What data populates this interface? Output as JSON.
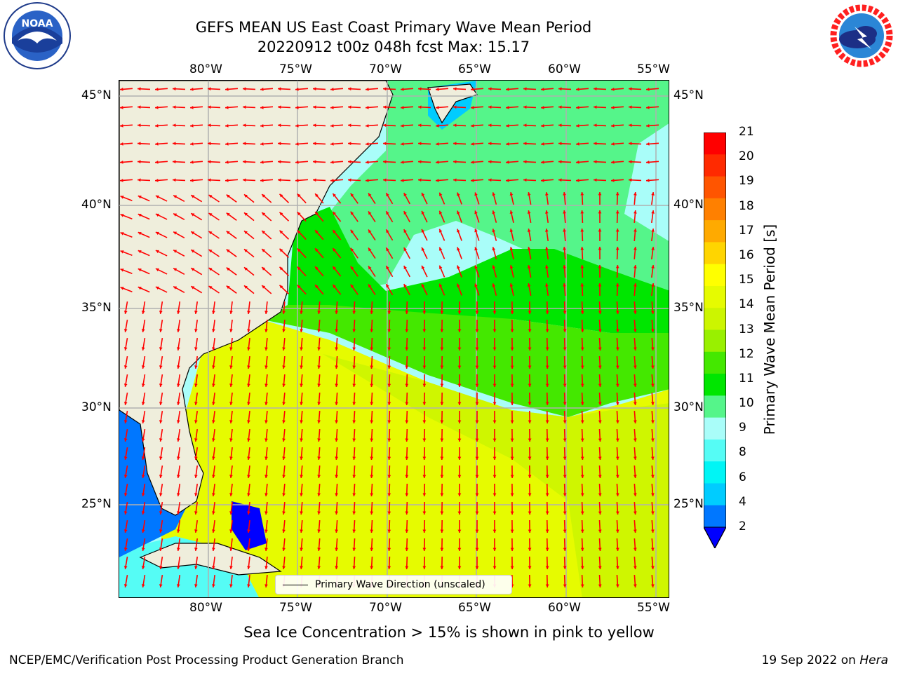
{
  "title_line1": "GEFS MEAN US East Coast Primary Wave Mean Period",
  "title_line2": "20220912 t00z 048h fcst   Max: 15.17",
  "lon_ticks": [
    "80°W",
    "75°W",
    "70°W",
    "65°W",
    "60°W",
    "55°W"
  ],
  "lat_ticks": [
    "45°N",
    "40°N",
    "35°N",
    "30°N",
    "25°N"
  ],
  "colorbar": {
    "label": "Primary Wave Mean Period [s]",
    "ticks": [
      "21",
      "20",
      "19",
      "18",
      "17",
      "16",
      "15",
      "14",
      "13",
      "12",
      "11",
      "10",
      "9",
      "8",
      "6",
      "4",
      "2"
    ],
    "colors": [
      "#ff0000",
      "#ff2a00",
      "#ff5500",
      "#ff8000",
      "#ffaa00",
      "#ffd500",
      "#ffff00",
      "#e6fb00",
      "#ccf500",
      "#99f000",
      "#44e800",
      "#00e600",
      "#55f58a",
      "#a9fdf9",
      "#55fcf5",
      "#00f5f5",
      "#00ccff",
      "#0077ff",
      "#0000ff"
    ],
    "extend_color": "#0000ff"
  },
  "legend": {
    "label": "Primary Wave Direction (unscaled)"
  },
  "subtitle": "Sea Ice Concentration > 15% is shown in pink to yellow",
  "footer_left": "NCEP/EMC/Verification Post Processing Product Generation Branch",
  "footer_date": "19 Sep 2022 on ",
  "footer_host": "Hera",
  "logos": {
    "noaa_text": "NOAA",
    "nws_text": "NATIONAL WEATHER SERVICE"
  },
  "colors": {
    "land": "#efeedc",
    "arrow": "#ff0000",
    "grid": "#b0b0b0"
  }
}
